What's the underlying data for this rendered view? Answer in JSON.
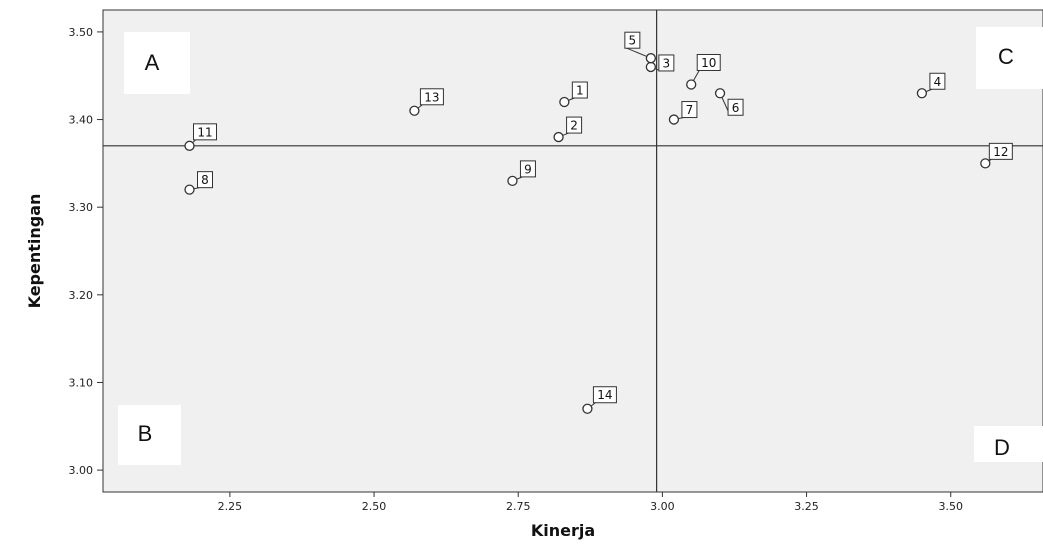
{
  "chart_data": {
    "type": "scatter",
    "xlabel": "Kinerja",
    "ylabel": "Kepentingan",
    "xlim": [
      2.03,
      3.66
    ],
    "ylim": [
      2.975,
      3.525
    ],
    "x_ticks": [
      "2.25",
      "2.50",
      "2.75",
      "3.00",
      "3.25",
      "3.50"
    ],
    "y_ticks": [
      "3.00",
      "3.10",
      "3.20",
      "3.30",
      "3.40",
      "3.50"
    ],
    "reference_lines": {
      "x": 2.99,
      "y": 3.37
    },
    "quadrant_labels": [
      "A",
      "B",
      "C",
      "D"
    ],
    "points": [
      {
        "label": "1",
        "x": 2.83,
        "y": 3.42
      },
      {
        "label": "2",
        "x": 2.82,
        "y": 3.38
      },
      {
        "label": "3",
        "x": 2.98,
        "y": 3.46
      },
      {
        "label": "4",
        "x": 3.45,
        "y": 3.43
      },
      {
        "label": "5",
        "x": 2.98,
        "y": 3.47
      },
      {
        "label": "6",
        "x": 3.1,
        "y": 3.43
      },
      {
        "label": "7",
        "x": 3.02,
        "y": 3.4
      },
      {
        "label": "8",
        "x": 2.18,
        "y": 3.32
      },
      {
        "label": "9",
        "x": 2.74,
        "y": 3.33
      },
      {
        "label": "10",
        "x": 3.05,
        "y": 3.44
      },
      {
        "label": "11",
        "x": 2.18,
        "y": 3.37
      },
      {
        "label": "12",
        "x": 3.56,
        "y": 3.35
      },
      {
        "label": "13",
        "x": 2.57,
        "y": 3.41
      },
      {
        "label": "14",
        "x": 2.87,
        "y": 3.07
      }
    ],
    "grid": false,
    "background_color": "#f0f0f0",
    "marker_fill": "#ffffff",
    "marker_stroke": "#333333"
  }
}
